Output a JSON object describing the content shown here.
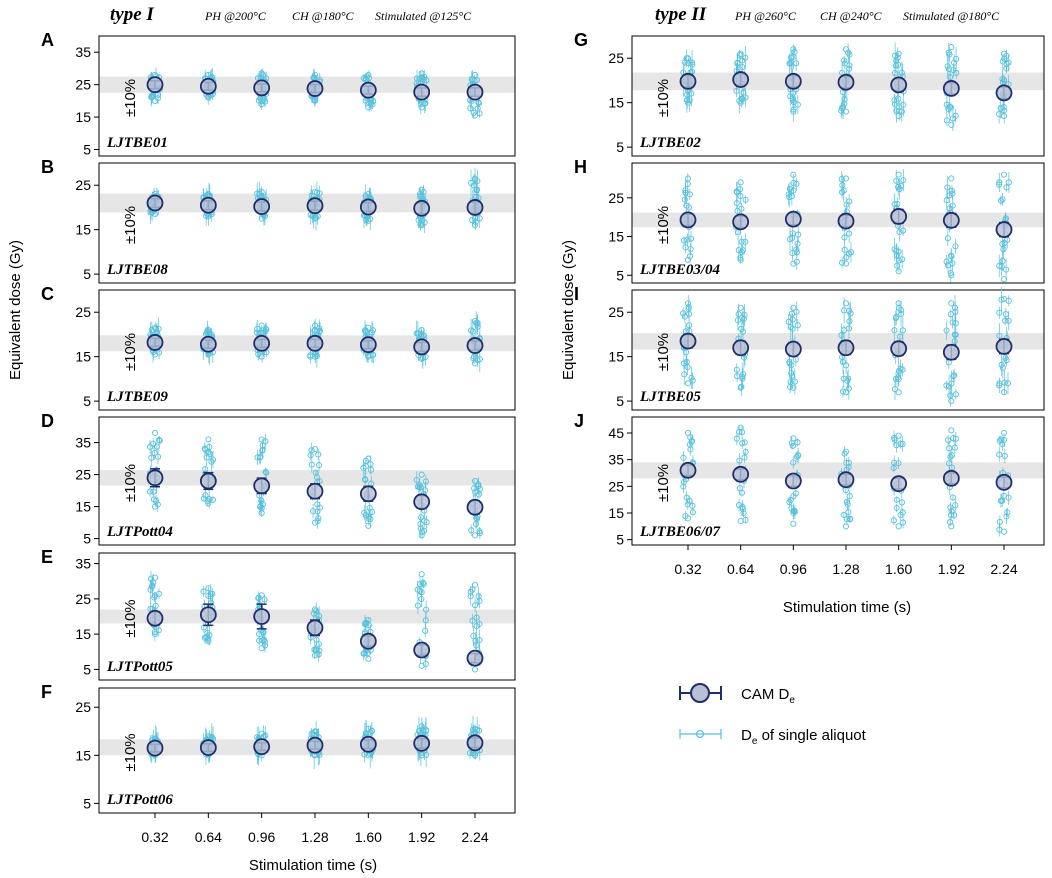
{
  "figure": {
    "left_group": {
      "type_label": "type I",
      "conditions": [
        "PH @200°C",
        "CH @180°C",
        "Stimulated @125°C"
      ]
    },
    "right_group": {
      "type_label": "type II",
      "conditions": [
        "PH @260°C",
        "CH @240°C",
        "Stimulated @180°C"
      ]
    },
    "ylabel": "Equivalent dose (Gy)",
    "xlabel": "Stimulation time (s)",
    "band_label": "±10%",
    "legend": {
      "cam": {
        "label": "CAM D",
        "subscript": "e"
      },
      "single": {
        "label_prefix": "D",
        "subscript": "e",
        "label_suffix": " of single aliquot"
      }
    },
    "colors": {
      "cam_fill": "#b9bfd6",
      "cam_stroke": "#1f2e6b",
      "single": "#56c1dc",
      "band": "#e6e6e6",
      "frame": "#000000"
    }
  },
  "chart_data": [
    {
      "panel": "A",
      "sample": "LJTBE01",
      "type": "scatter",
      "x": [
        0.32,
        0.64,
        0.96,
        1.28,
        1.6,
        1.92,
        2.24
      ],
      "x_ticks": [
        "0.32",
        "0.64",
        "0.96",
        "1.28",
        "1.60",
        "1.92",
        "2.24"
      ],
      "cam_de": [
        25.0,
        24.5,
        24.0,
        23.8,
        23.3,
        22.7,
        22.7
      ],
      "cam_err": [
        1.2,
        1.2,
        1.2,
        1.2,
        1.2,
        1.3,
        1.3
      ],
      "single_range": [
        [
          20,
          28
        ],
        [
          21,
          28
        ],
        [
          19,
          28.5
        ],
        [
          20,
          28
        ],
        [
          18,
          28
        ],
        [
          18,
          28.5
        ],
        [
          15.5,
          28
        ]
      ],
      "band": [
        22.5,
        27.5
      ],
      "ylim": [
        3,
        40
      ],
      "yticks": [
        5,
        15,
        25,
        35
      ]
    },
    {
      "panel": "B",
      "sample": "LJTBE08",
      "type": "scatter",
      "x": [
        0.32,
        0.64,
        0.96,
        1.28,
        1.6,
        1.92,
        2.24
      ],
      "x_ticks": [
        "0.32",
        "0.64",
        "0.96",
        "1.28",
        "1.60",
        "1.92",
        "2.24"
      ],
      "cam_de": [
        21.0,
        20.5,
        20.2,
        20.4,
        20.1,
        19.8,
        20.0
      ],
      "cam_err": [
        1.0,
        1.0,
        1.0,
        1.0,
        1.0,
        1.2,
        1.3
      ],
      "single_range": [
        [
          18.5,
          23
        ],
        [
          18,
          23
        ],
        [
          17.5,
          23.5
        ],
        [
          17.5,
          23.5
        ],
        [
          17,
          23
        ],
        [
          16,
          24
        ],
        [
          16,
          26.5
        ]
      ],
      "band": [
        18.9,
        23.1
      ],
      "ylim": [
        3,
        30
      ],
      "yticks": [
        5,
        15,
        25
      ]
    },
    {
      "panel": "C",
      "sample": "LJTBE09",
      "type": "scatter",
      "x": [
        0.32,
        0.64,
        0.96,
        1.28,
        1.6,
        1.92,
        2.24
      ],
      "x_ticks": [
        "0.32",
        "0.64",
        "0.96",
        "1.28",
        "1.60",
        "1.92",
        "2.24"
      ],
      "cam_de": [
        18.2,
        17.8,
        18.0,
        18.0,
        17.7,
        17.2,
        17.5
      ],
      "cam_err": [
        0.9,
        0.9,
        0.9,
        0.9,
        0.9,
        1.0,
        1.0
      ],
      "single_range": [
        [
          15.5,
          21.5
        ],
        [
          15.5,
          21
        ],
        [
          15,
          22
        ],
        [
          15,
          22
        ],
        [
          15,
          21.5
        ],
        [
          14.5,
          21
        ],
        [
          13.5,
          23
        ]
      ],
      "band": [
        16.2,
        19.8
      ],
      "ylim": [
        3,
        30
      ],
      "yticks": [
        5,
        15,
        25
      ]
    },
    {
      "panel": "D",
      "sample": "LJTPott04",
      "type": "scatter",
      "x": [
        0.32,
        0.64,
        0.96,
        1.28,
        1.6,
        1.92,
        2.24
      ],
      "x_ticks": [
        "0.32",
        "0.64",
        "0.96",
        "1.28",
        "1.60",
        "1.92",
        "2.24"
      ],
      "cam_de": [
        24.0,
        23.0,
        21.5,
        19.8,
        19.0,
        16.5,
        14.8
      ],
      "cam_err": [
        2.8,
        2.6,
        2.4,
        2.3,
        2.3,
        2.0,
        2.0
      ],
      "single_range": [
        [
          15,
          38
        ],
        [
          16,
          36
        ],
        [
          13,
          36
        ],
        [
          10,
          33
        ],
        [
          9,
          30
        ],
        [
          6,
          25
        ],
        [
          6,
          23
        ]
      ],
      "band": [
        21.6,
        26.4
      ],
      "ylim": [
        3,
        43
      ],
      "yticks": [
        5,
        15,
        25,
        35
      ]
    },
    {
      "panel": "E",
      "sample": "LJTPott05",
      "type": "scatter",
      "x": [
        0.32,
        0.64,
        0.96,
        1.28,
        1.6,
        1.92,
        2.24
      ],
      "x_ticks": [
        "0.32",
        "0.64",
        "0.96",
        "1.28",
        "1.60",
        "1.92",
        "2.24"
      ],
      "cam_de": [
        19.5,
        20.5,
        20.0,
        16.8,
        13.0,
        10.5,
        8.2
      ],
      "cam_err": [
        1.8,
        3.0,
        3.5,
        2.2,
        1.5,
        1.5,
        1.3
      ],
      "single_range": [
        [
          15,
          31
        ],
        [
          13,
          28
        ],
        [
          11,
          26
        ],
        [
          9,
          22
        ],
        [
          8,
          19
        ],
        [
          6,
          32
        ],
        [
          5,
          29
        ]
      ],
      "band": [
        18.0,
        22.0
      ],
      "ylim": [
        2,
        38
      ],
      "yticks": [
        5,
        15,
        25,
        35
      ]
    },
    {
      "panel": "F",
      "sample": "LJTPott06",
      "type": "scatter",
      "x": [
        0.32,
        0.64,
        0.96,
        1.28,
        1.6,
        1.92,
        2.24
      ],
      "x_ticks": [
        "0.32",
        "0.64",
        "0.96",
        "1.28",
        "1.60",
        "1.92",
        "2.24"
      ],
      "cam_de": [
        16.5,
        16.6,
        16.8,
        17.1,
        17.3,
        17.5,
        17.6
      ],
      "cam_err": [
        0.8,
        0.8,
        0.8,
        0.8,
        0.9,
        1.0,
        1.0
      ],
      "single_range": [
        [
          15,
          18.5
        ],
        [
          15,
          19
        ],
        [
          15,
          19.5
        ],
        [
          15,
          20
        ],
        [
          15,
          20.5
        ],
        [
          15,
          21
        ],
        [
          15,
          20.5
        ]
      ],
      "band": [
        15.0,
        18.3
      ],
      "ylim": [
        3,
        29
      ],
      "yticks": [
        5,
        15,
        25
      ]
    },
    {
      "panel": "G",
      "sample": "LJTBE02",
      "type": "scatter",
      "x": [
        0.32,
        0.64,
        0.96,
        1.28,
        1.6,
        1.92,
        2.24
      ],
      "x_ticks": [
        "0.32",
        "0.64",
        "0.96",
        "1.28",
        "1.60",
        "1.92",
        "2.24"
      ],
      "cam_de": [
        19.8,
        20.2,
        19.8,
        19.6,
        19.0,
        18.2,
        17.2
      ],
      "cam_err": [
        1.3,
        1.3,
        1.3,
        1.3,
        1.3,
        1.3,
        1.3
      ],
      "single_range": [
        [
          15,
          25
        ],
        [
          15,
          26
        ],
        [
          13,
          27
        ],
        [
          13,
          27
        ],
        [
          12,
          26
        ],
        [
          10,
          27.5
        ],
        [
          12,
          26
        ]
      ],
      "band": [
        17.8,
        21.8
      ],
      "ylim": [
        3,
        30
      ],
      "yticks": [
        5,
        15,
        25
      ]
    },
    {
      "panel": "H",
      "sample": "LJTBE03/04",
      "type": "scatter",
      "x": [
        0.32,
        0.64,
        0.96,
        1.28,
        1.6,
        1.92,
        2.24
      ],
      "x_ticks": [
        "0.32",
        "0.64",
        "0.96",
        "1.28",
        "1.60",
        "1.92",
        "2.24"
      ],
      "cam_de": [
        19.3,
        18.8,
        19.5,
        19.0,
        20.2,
        19.2,
        16.8
      ],
      "cam_err": [
        1.5,
        1.5,
        1.5,
        1.5,
        1.8,
        1.8,
        1.8
      ],
      "single_range": [
        [
          9,
          30
        ],
        [
          9,
          29
        ],
        [
          8,
          31
        ],
        [
          8,
          30
        ],
        [
          6,
          31
        ],
        [
          5,
          30
        ],
        [
          4,
          31
        ]
      ],
      "band": [
        17.4,
        21.2
      ],
      "ylim": [
        3,
        34
      ],
      "yticks": [
        5,
        15,
        25
      ]
    },
    {
      "panel": "I",
      "sample": "LJTBE05",
      "type": "scatter",
      "x": [
        0.32,
        0.64,
        0.96,
        1.28,
        1.6,
        1.92,
        2.24
      ],
      "x_ticks": [
        "0.32",
        "0.64",
        "0.96",
        "1.28",
        "1.60",
        "1.92",
        "2.24"
      ],
      "cam_de": [
        18.5,
        17.0,
        16.7,
        17.0,
        16.8,
        16.0,
        17.3
      ],
      "cam_err": [
        1.5,
        1.5,
        1.5,
        1.5,
        1.5,
        1.6,
        1.6
      ],
      "single_range": [
        [
          9,
          27
        ],
        [
          8,
          26
        ],
        [
          8,
          26
        ],
        [
          7,
          27
        ],
        [
          7,
          27
        ],
        [
          5,
          27
        ],
        [
          7,
          28
        ]
      ],
      "band": [
        16.6,
        20.3
      ],
      "ylim": [
        3,
        30
      ],
      "yticks": [
        5,
        15,
        25
      ]
    },
    {
      "panel": "J",
      "sample": "LJTBE06/07",
      "type": "scatter",
      "x": [
        0.32,
        0.64,
        0.96,
        1.28,
        1.6,
        1.92,
        2.24
      ],
      "x_ticks": [
        "0.32",
        "0.64",
        "0.96",
        "1.28",
        "1.60",
        "1.92",
        "2.24"
      ],
      "cam_de": [
        31.0,
        29.5,
        27.0,
        27.5,
        26.0,
        28.0,
        26.5
      ],
      "cam_err": [
        2.0,
        2.0,
        2.0,
        2.0,
        2.0,
        2.0,
        2.0
      ],
      "single_range": [
        [
          13,
          45
        ],
        [
          12,
          47
        ],
        [
          11,
          43
        ],
        [
          10,
          38
        ],
        [
          10,
          44
        ],
        [
          10,
          46
        ],
        [
          8,
          45
        ]
      ],
      "band": [
        28.0,
        34.0
      ],
      "ylim": [
        3,
        51
      ],
      "yticks": [
        5,
        15,
        25,
        35,
        45
      ]
    }
  ]
}
